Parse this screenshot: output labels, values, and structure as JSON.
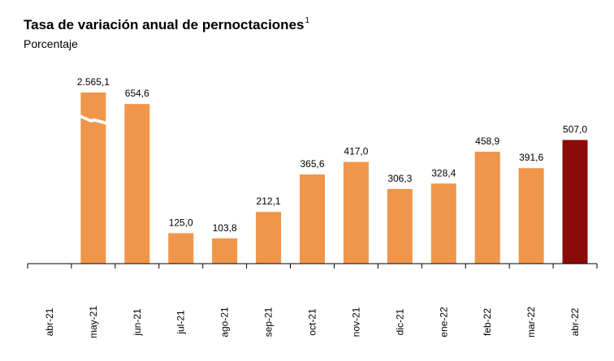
{
  "chart_data": {
    "type": "bar",
    "title": "Tasa de variación anual de pernoctaciones",
    "title_footnote": "1",
    "subtitle": "Porcentaje",
    "xlabel": "",
    "ylabel": "",
    "grid": false,
    "axis_break": true,
    "categories": [
      "abr-21",
      "may-21",
      "jun-21",
      "jul-21",
      "ago-21",
      "sep-21",
      "oct-21",
      "nov-21",
      "dic-21",
      "ene-22",
      "feb-22",
      "mar-22",
      "abr-22"
    ],
    "values": [
      null,
      2565.1,
      654.6,
      125.0,
      103.8,
      212.1,
      365.6,
      417.0,
      306.3,
      328.4,
      458.9,
      391.6,
      507.0
    ],
    "value_labels": [
      "",
      "2.565,1",
      "654,6",
      "125,0",
      "103,8",
      "212,1",
      "365,6",
      "417,0",
      "306,3",
      "328,4",
      "458,9",
      "391,6",
      "507,0"
    ],
    "colors": {
      "default": "#F0964A",
      "highlight": "#8B0B0B"
    },
    "highlight_index": 12
  }
}
